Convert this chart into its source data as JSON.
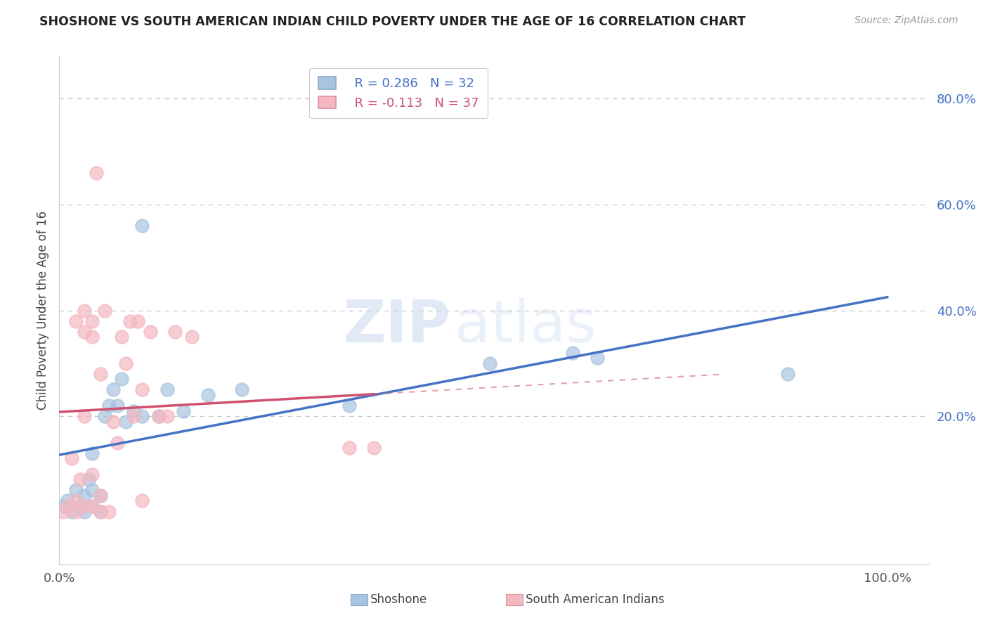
{
  "title": "SHOSHONE VS SOUTH AMERICAN INDIAN CHILD POVERTY UNDER THE AGE OF 16 CORRELATION CHART",
  "source": "Source: ZipAtlas.com",
  "ylabel": "Child Poverty Under the Age of 16",
  "xlim": [
    0.0,
    1.05
  ],
  "ylim": [
    -0.08,
    0.88
  ],
  "yticks": [
    0.0,
    0.2,
    0.4,
    0.6,
    0.8
  ],
  "ytick_labels": [
    "",
    "20.0%",
    "40.0%",
    "60.0%",
    "80.0%"
  ],
  "xtick_labels": [
    "0.0%",
    "100.0%"
  ],
  "legend_r_shoshone": "R = 0.286",
  "legend_n_shoshone": "N = 32",
  "legend_r_sai": "R = -0.113",
  "legend_n_sai": "N = 37",
  "shoshone_color": "#a8c4e0",
  "shoshone_line_color": "#4472c4",
  "sai_color": "#f4b8c1",
  "sai_line_color": "#d05070",
  "watermark_zip": "ZIP",
  "watermark_atlas": "atlas",
  "shoshone_x": [
    0.005,
    0.01,
    0.015,
    0.02,
    0.025,
    0.03,
    0.03,
    0.035,
    0.04,
    0.04,
    0.04,
    0.05,
    0.05,
    0.055,
    0.06,
    0.065,
    0.07,
    0.075,
    0.08,
    0.09,
    0.1,
    0.1,
    0.12,
    0.13,
    0.15,
    0.18,
    0.22,
    0.35,
    0.52,
    0.62,
    0.65,
    0.88
  ],
  "shoshone_y": [
    0.03,
    0.04,
    0.02,
    0.06,
    0.03,
    0.02,
    0.05,
    0.08,
    0.03,
    0.06,
    0.13,
    0.02,
    0.05,
    0.2,
    0.22,
    0.25,
    0.22,
    0.27,
    0.19,
    0.21,
    0.2,
    0.56,
    0.2,
    0.25,
    0.21,
    0.24,
    0.25,
    0.22,
    0.3,
    0.32,
    0.31,
    0.28
  ],
  "sai_x": [
    0.005,
    0.01,
    0.015,
    0.02,
    0.02,
    0.02,
    0.025,
    0.03,
    0.03,
    0.03,
    0.03,
    0.04,
    0.04,
    0.04,
    0.04,
    0.045,
    0.05,
    0.05,
    0.05,
    0.055,
    0.06,
    0.065,
    0.07,
    0.075,
    0.08,
    0.085,
    0.09,
    0.095,
    0.1,
    0.1,
    0.11,
    0.12,
    0.13,
    0.14,
    0.16,
    0.35,
    0.38
  ],
  "sai_y": [
    0.02,
    0.03,
    0.12,
    0.02,
    0.04,
    0.38,
    0.08,
    0.03,
    0.2,
    0.36,
    0.4,
    0.03,
    0.09,
    0.35,
    0.38,
    0.66,
    0.02,
    0.05,
    0.28,
    0.4,
    0.02,
    0.19,
    0.15,
    0.35,
    0.3,
    0.38,
    0.2,
    0.38,
    0.04,
    0.25,
    0.36,
    0.2,
    0.2,
    0.36,
    0.35,
    0.14,
    0.14
  ]
}
